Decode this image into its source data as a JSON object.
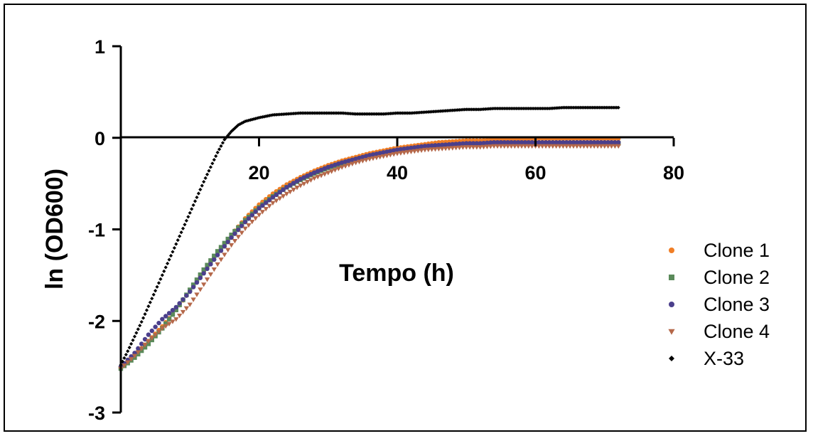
{
  "chart_data": {
    "type": "scatter",
    "title": "",
    "xlabel": "Tempo (h)",
    "ylabel": "ln (OD600)",
    "xlim": [
      0,
      80
    ],
    "ylim": [
      -3,
      1
    ],
    "x_ticks": [
      "20",
      "40",
      "60",
      "80"
    ],
    "y_ticks": [
      "1",
      "0",
      "-1",
      "-2",
      "-3"
    ],
    "legend_position": "right",
    "grid": false,
    "series": [
      {
        "name": "Clone 1",
        "color": "#F07E26",
        "marker": "circle",
        "points": [
          [
            0,
            -2.52
          ],
          [
            2,
            -2.38
          ],
          [
            4,
            -2.22
          ],
          [
            6,
            -2.06
          ],
          [
            8,
            -1.88
          ],
          [
            10,
            -1.67
          ],
          [
            12,
            -1.46
          ],
          [
            14,
            -1.25
          ],
          [
            16,
            -1.06
          ],
          [
            18,
            -0.88
          ],
          [
            20,
            -0.73
          ],
          [
            22,
            -0.61
          ],
          [
            24,
            -0.51
          ],
          [
            26,
            -0.43
          ],
          [
            28,
            -0.36
          ],
          [
            30,
            -0.3
          ],
          [
            32,
            -0.25
          ],
          [
            34,
            -0.21
          ],
          [
            36,
            -0.17
          ],
          [
            38,
            -0.14
          ],
          [
            40,
            -0.11
          ],
          [
            42,
            -0.09
          ],
          [
            44,
            -0.07
          ],
          [
            46,
            -0.05
          ],
          [
            48,
            -0.04
          ],
          [
            50,
            -0.03
          ],
          [
            52,
            -0.03
          ],
          [
            54,
            -0.02
          ],
          [
            56,
            -0.02
          ],
          [
            58,
            -0.02
          ],
          [
            60,
            -0.01
          ],
          [
            62,
            -0.01
          ],
          [
            64,
            -0.01
          ],
          [
            66,
            -0.01
          ],
          [
            68,
            -0.01
          ],
          [
            70,
            -0.01
          ],
          [
            72,
            -0.01
          ]
        ]
      },
      {
        "name": "Clone 2",
        "color": "#5A8A5A",
        "marker": "square",
        "points": [
          [
            0,
            -2.52
          ],
          [
            2,
            -2.4
          ],
          [
            4,
            -2.25
          ],
          [
            6,
            -2.08
          ],
          [
            8,
            -1.88
          ],
          [
            10,
            -1.66
          ],
          [
            12,
            -1.44
          ],
          [
            14,
            -1.24
          ],
          [
            16,
            -1.06
          ],
          [
            18,
            -0.9
          ],
          [
            20,
            -0.76
          ],
          [
            22,
            -0.64
          ],
          [
            24,
            -0.54
          ],
          [
            26,
            -0.46
          ],
          [
            28,
            -0.39
          ],
          [
            30,
            -0.33
          ],
          [
            32,
            -0.28
          ],
          [
            34,
            -0.24
          ],
          [
            36,
            -0.2
          ],
          [
            38,
            -0.17
          ],
          [
            40,
            -0.14
          ],
          [
            42,
            -0.12
          ],
          [
            44,
            -0.1
          ],
          [
            46,
            -0.09
          ],
          [
            48,
            -0.08
          ],
          [
            50,
            -0.07
          ],
          [
            52,
            -0.07
          ],
          [
            54,
            -0.06
          ],
          [
            56,
            -0.06
          ],
          [
            58,
            -0.06
          ],
          [
            60,
            -0.06
          ],
          [
            62,
            -0.06
          ],
          [
            64,
            -0.06
          ],
          [
            66,
            -0.06
          ],
          [
            68,
            -0.06
          ],
          [
            70,
            -0.06
          ],
          [
            72,
            -0.06
          ]
        ]
      },
      {
        "name": "Clone 3",
        "color": "#4B3F8C",
        "marker": "circle",
        "points": [
          [
            0,
            -2.5
          ],
          [
            2,
            -2.35
          ],
          [
            4,
            -2.15
          ],
          [
            6,
            -1.98
          ],
          [
            8,
            -1.85
          ],
          [
            10,
            -1.68
          ],
          [
            12,
            -1.48
          ],
          [
            14,
            -1.28
          ],
          [
            16,
            -1.09
          ],
          [
            18,
            -0.92
          ],
          [
            20,
            -0.77
          ],
          [
            22,
            -0.65
          ],
          [
            24,
            -0.54
          ],
          [
            26,
            -0.45
          ],
          [
            28,
            -0.38
          ],
          [
            30,
            -0.32
          ],
          [
            32,
            -0.27
          ],
          [
            34,
            -0.23
          ],
          [
            36,
            -0.19
          ],
          [
            38,
            -0.16
          ],
          [
            40,
            -0.13
          ],
          [
            42,
            -0.11
          ],
          [
            44,
            -0.09
          ],
          [
            46,
            -0.08
          ],
          [
            48,
            -0.07
          ],
          [
            50,
            -0.06
          ],
          [
            52,
            -0.06
          ],
          [
            54,
            -0.05
          ],
          [
            56,
            -0.05
          ],
          [
            58,
            -0.05
          ],
          [
            60,
            -0.05
          ],
          [
            62,
            -0.05
          ],
          [
            64,
            -0.05
          ],
          [
            66,
            -0.05
          ],
          [
            68,
            -0.05
          ],
          [
            70,
            -0.05
          ],
          [
            72,
            -0.05
          ]
        ]
      },
      {
        "name": "Clone 4",
        "color": "#B5684A",
        "marker": "triangle-down",
        "points": [
          [
            0,
            -2.52
          ],
          [
            2,
            -2.38
          ],
          [
            4,
            -2.22
          ],
          [
            6,
            -2.08
          ],
          [
            8,
            -1.98
          ],
          [
            10,
            -1.82
          ],
          [
            12,
            -1.6
          ],
          [
            14,
            -1.38
          ],
          [
            16,
            -1.17
          ],
          [
            18,
            -0.99
          ],
          [
            20,
            -0.84
          ],
          [
            22,
            -0.71
          ],
          [
            24,
            -0.61
          ],
          [
            26,
            -0.52
          ],
          [
            28,
            -0.44
          ],
          [
            30,
            -0.38
          ],
          [
            32,
            -0.32
          ],
          [
            34,
            -0.27
          ],
          [
            36,
            -0.23
          ],
          [
            38,
            -0.2
          ],
          [
            40,
            -0.17
          ],
          [
            42,
            -0.15
          ],
          [
            44,
            -0.13
          ],
          [
            46,
            -0.12
          ],
          [
            48,
            -0.11
          ],
          [
            50,
            -0.1
          ],
          [
            52,
            -0.1
          ],
          [
            54,
            -0.09
          ],
          [
            56,
            -0.09
          ],
          [
            58,
            -0.09
          ],
          [
            60,
            -0.09
          ],
          [
            62,
            -0.09
          ],
          [
            64,
            -0.09
          ],
          [
            66,
            -0.09
          ],
          [
            68,
            -0.09
          ],
          [
            70,
            -0.09
          ],
          [
            72,
            -0.09
          ]
        ]
      },
      {
        "name": "X-33",
        "color": "#000000",
        "marker": "diamond",
        "points": [
          [
            0,
            -2.48
          ],
          [
            1,
            -2.33
          ],
          [
            2,
            -2.17
          ],
          [
            3,
            -2.01
          ],
          [
            4,
            -1.84
          ],
          [
            5,
            -1.67
          ],
          [
            6,
            -1.5
          ],
          [
            7,
            -1.33
          ],
          [
            8,
            -1.16
          ],
          [
            9,
            -0.99
          ],
          [
            10,
            -0.82
          ],
          [
            11,
            -0.65
          ],
          [
            12,
            -0.48
          ],
          [
            13,
            -0.32
          ],
          [
            14,
            -0.16
          ],
          [
            15,
            -0.02
          ],
          [
            16,
            0.07
          ],
          [
            17,
            0.14
          ],
          [
            18,
            0.18
          ],
          [
            20,
            0.22
          ],
          [
            22,
            0.25
          ],
          [
            24,
            0.26
          ],
          [
            26,
            0.27
          ],
          [
            28,
            0.27
          ],
          [
            30,
            0.27
          ],
          [
            32,
            0.27
          ],
          [
            34,
            0.26
          ],
          [
            36,
            0.26
          ],
          [
            38,
            0.26
          ],
          [
            40,
            0.27
          ],
          [
            42,
            0.27
          ],
          [
            44,
            0.28
          ],
          [
            46,
            0.29
          ],
          [
            48,
            0.3
          ],
          [
            50,
            0.31
          ],
          [
            52,
            0.31
          ],
          [
            54,
            0.32
          ],
          [
            56,
            0.32
          ],
          [
            58,
            0.32
          ],
          [
            60,
            0.32
          ],
          [
            62,
            0.32
          ],
          [
            64,
            0.33
          ],
          [
            66,
            0.33
          ],
          [
            68,
            0.33
          ],
          [
            70,
            0.33
          ],
          [
            72,
            0.33
          ]
        ]
      }
    ]
  }
}
